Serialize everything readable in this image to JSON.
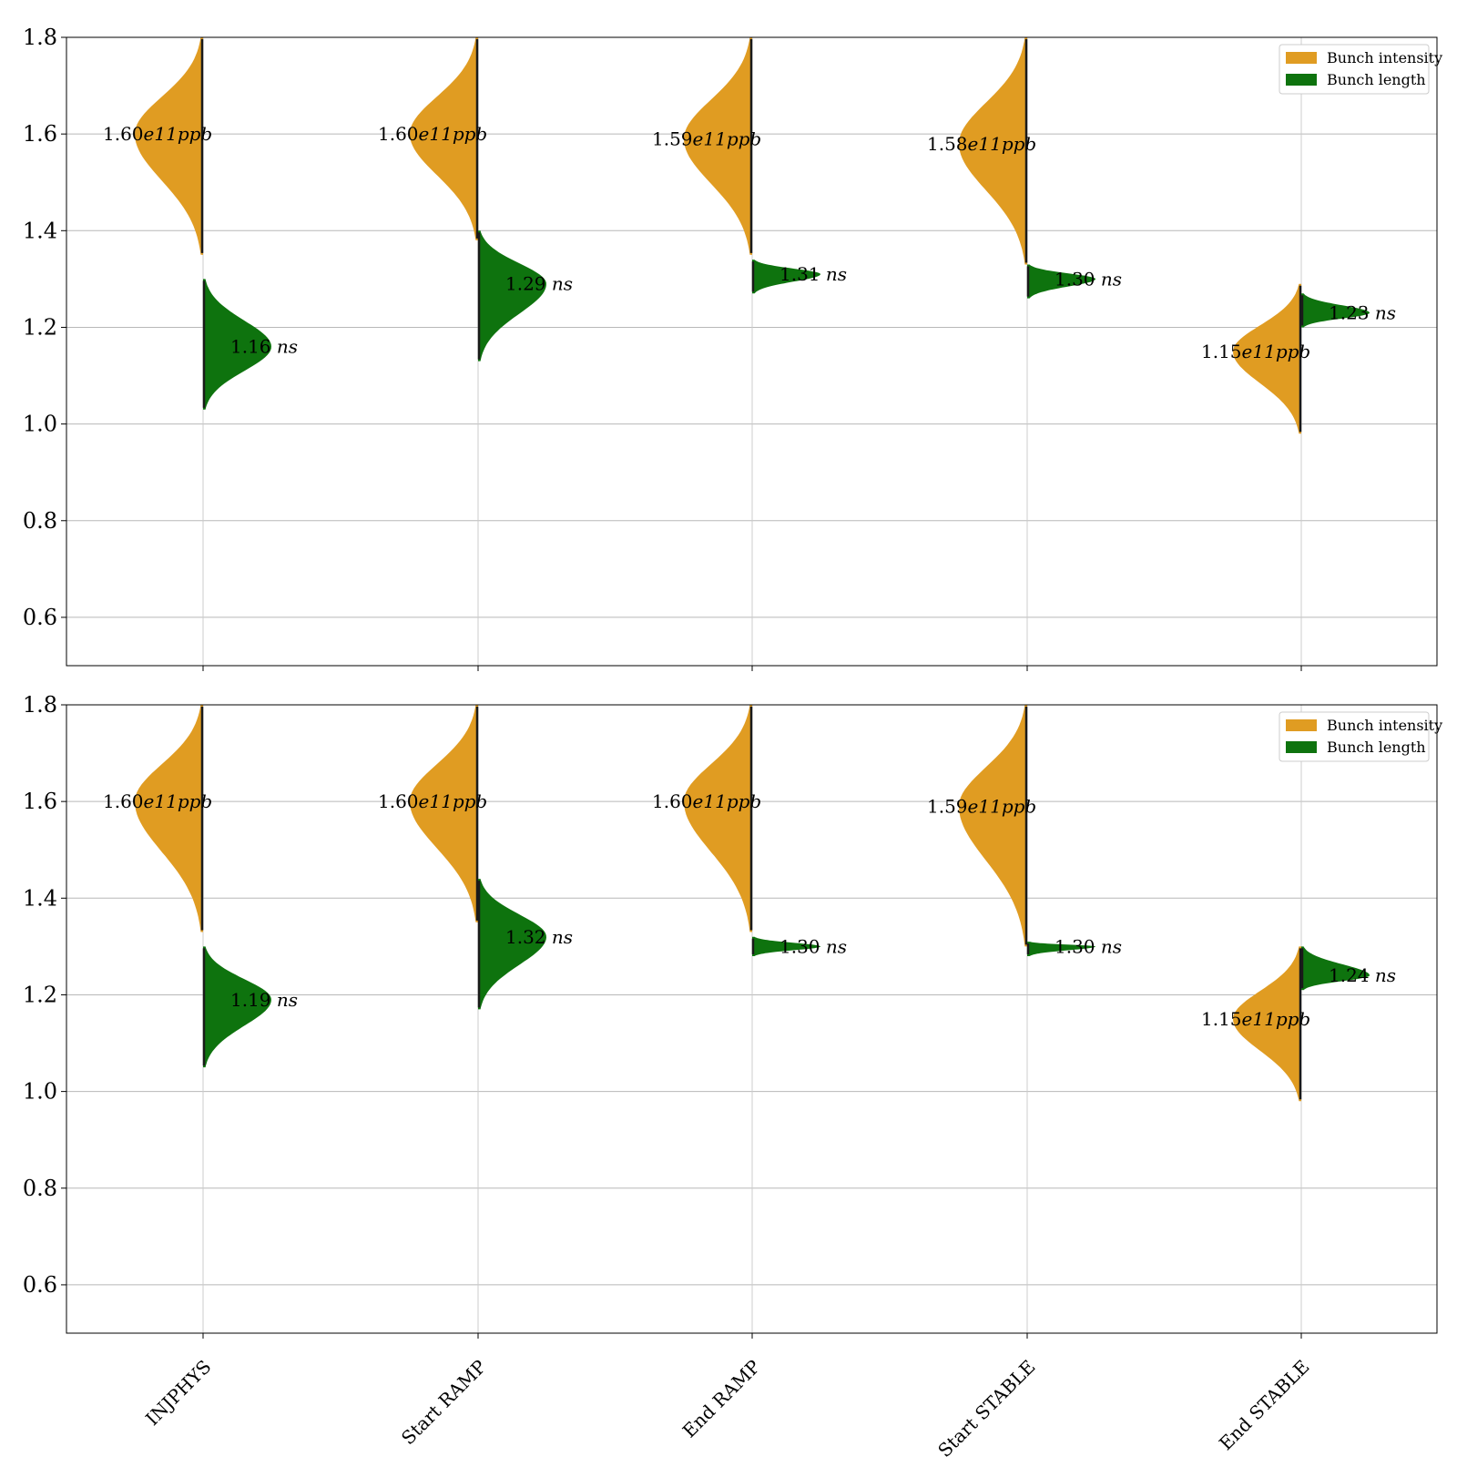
{
  "chart_data": [
    {
      "type": "violin",
      "categories": [
        "INJPHYS",
        "Start RAMP",
        "End RAMP",
        "Start STABLE",
        "End STABLE"
      ],
      "ylim": [
        0.5,
        1.8
      ],
      "yticks": [
        "0.6",
        "0.8",
        "1.0",
        "1.2",
        "1.4",
        "1.6",
        "1.8"
      ],
      "show_x_tick_labels": false,
      "grid": "horizontal",
      "legend_position": "top-right",
      "colors": {
        "intensity": "#e09c22",
        "length": "#0e730e"
      },
      "series": [
        {
          "name": "Bunch intensity",
          "side": "left",
          "median": [
            1.6,
            1.6,
            1.59,
            1.58,
            1.15
          ],
          "labels": [
            "1.60e11ppb",
            "1.60e11ppb",
            "1.59e11ppb",
            "1.58e11ppb",
            "1.15e11ppb"
          ],
          "label_parts": [
            {
              "num": "1.60",
              "unit": "e11ppb"
            },
            {
              "num": "1.60",
              "unit": "e11ppb"
            },
            {
              "num": "1.59",
              "unit": "e11ppb"
            },
            {
              "num": "1.58",
              "unit": "e11ppb"
            },
            {
              "num": "1.15",
              "unit": "e11ppb"
            }
          ],
          "range": [
            [
              1.35,
              1.8
            ],
            [
              1.38,
              1.8
            ],
            [
              1.35,
              1.8
            ],
            [
              1.33,
              1.8
            ],
            [
              0.98,
              1.29
            ]
          ]
        },
        {
          "name": "Bunch length",
          "side": "right",
          "median": [
            1.16,
            1.29,
            1.31,
            1.3,
            1.23
          ],
          "labels": [
            "1.16 ns",
            "1.29 ns",
            "1.31 ns",
            "1.30 ns",
            "1.23 ns"
          ],
          "label_parts": [
            {
              "num": "1.16 ",
              "unit": "ns"
            },
            {
              "num": "1.29 ",
              "unit": "ns"
            },
            {
              "num": "1.31 ",
              "unit": "ns"
            },
            {
              "num": "1.30 ",
              "unit": "ns"
            },
            {
              "num": "1.23 ",
              "unit": "ns"
            }
          ],
          "range": [
            [
              1.03,
              1.3
            ],
            [
              1.13,
              1.4
            ],
            [
              1.27,
              1.34
            ],
            [
              1.26,
              1.33
            ],
            [
              1.2,
              1.27
            ]
          ]
        }
      ]
    },
    {
      "type": "violin",
      "categories": [
        "INJPHYS",
        "Start RAMP",
        "End RAMP",
        "Start STABLE",
        "End STABLE"
      ],
      "ylim": [
        0.5,
        1.8
      ],
      "yticks": [
        "0.6",
        "0.8",
        "1.0",
        "1.2",
        "1.4",
        "1.6",
        "1.8"
      ],
      "show_x_tick_labels": true,
      "grid": "horizontal",
      "legend_position": "top-right",
      "colors": {
        "intensity": "#e09c22",
        "length": "#0e730e"
      },
      "series": [
        {
          "name": "Bunch intensity",
          "side": "left",
          "median": [
            1.6,
            1.6,
            1.6,
            1.59,
            1.15
          ],
          "labels": [
            "1.60e11ppb",
            "1.60e11ppb",
            "1.60e11ppb",
            "1.59e11ppb",
            "1.15e11ppb"
          ],
          "label_parts": [
            {
              "num": "1.60",
              "unit": "e11ppb"
            },
            {
              "num": "1.60",
              "unit": "e11ppb"
            },
            {
              "num": "1.60",
              "unit": "e11ppb"
            },
            {
              "num": "1.59",
              "unit": "e11ppb"
            },
            {
              "num": "1.15",
              "unit": "e11ppb"
            }
          ],
          "range": [
            [
              1.33,
              1.8
            ],
            [
              1.35,
              1.8
            ],
            [
              1.33,
              1.8
            ],
            [
              1.3,
              1.8
            ],
            [
              0.98,
              1.3
            ]
          ]
        },
        {
          "name": "Bunch length",
          "side": "right",
          "median": [
            1.19,
            1.32,
            1.3,
            1.3,
            1.24
          ],
          "labels": [
            "1.19 ns",
            "1.32 ns",
            "1.30 ns",
            "1.30 ns",
            "1.24 ns"
          ],
          "label_parts": [
            {
              "num": "1.19 ",
              "unit": "ns"
            },
            {
              "num": "1.32 ",
              "unit": "ns"
            },
            {
              "num": "1.30 ",
              "unit": "ns"
            },
            {
              "num": "1.30 ",
              "unit": "ns"
            },
            {
              "num": "1.24 ",
              "unit": "ns"
            }
          ],
          "range": [
            [
              1.05,
              1.3
            ],
            [
              1.17,
              1.44
            ],
            [
              1.28,
              1.32
            ],
            [
              1.28,
              1.31
            ],
            [
              1.21,
              1.3
            ]
          ]
        }
      ]
    }
  ]
}
